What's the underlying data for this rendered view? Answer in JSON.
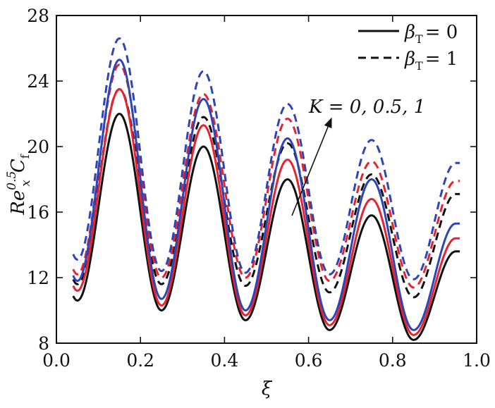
{
  "chart_data": {
    "type": "line",
    "title": "",
    "xlabel": "ξ",
    "ylabel": "Re_x^0.5 C_f",
    "ylabel_parts": {
      "main": "Re",
      "sub": "x",
      "sup": "0.5",
      "tail": "C",
      "tail_sub": "f"
    },
    "xlim": [
      0.0,
      1.0
    ],
    "ylim": [
      8,
      28
    ],
    "x_ticks": [
      "0.0",
      "0.2",
      "0.4",
      "0.6",
      "0.8",
      "1.0"
    ],
    "y_ticks": [
      "8",
      "12",
      "16",
      "20",
      "24",
      "28"
    ],
    "x_range": [
      0.04,
      0.96
    ],
    "peak_x": [
      0.15,
      0.35,
      0.55,
      0.75,
      0.95
    ],
    "trough_x": [
      0.05,
      0.25,
      0.45,
      0.65,
      0.85
    ],
    "legend": {
      "position": "top-right",
      "entries": [
        {
          "symbol": "β",
          "sub": "T",
          "eq": "= 0",
          "style": "solid"
        },
        {
          "symbol": "β",
          "sub": "T",
          "eq": "= 1",
          "style": "dashed"
        }
      ]
    },
    "annotation": {
      "text": "K = 0, 0.5, 1",
      "description": "arrow points in direction of increasing K"
    },
    "series": [
      {
        "name": "βT=0, K=0",
        "color": "#111111",
        "dash": "solid",
        "peaks": [
          22.0,
          20.0,
          18.0,
          15.8,
          13.6
        ],
        "troughs": [
          10.6,
          10.0,
          9.4,
          8.8,
          8.2
        ]
      },
      {
        "name": "βT=0, K=0.5",
        "color": "#e8222e",
        "dash": "solid",
        "peaks": [
          23.5,
          21.3,
          19.2,
          16.8,
          14.4
        ],
        "troughs": [
          11.2,
          10.3,
          9.7,
          9.1,
          8.5
        ]
      },
      {
        "name": "βT=0, K=1",
        "color": "#2e45b8",
        "dash": "solid",
        "peaks": [
          25.3,
          22.9,
          20.5,
          18.0,
          15.3
        ],
        "troughs": [
          11.8,
          10.7,
          10.0,
          9.4,
          8.8
        ]
      },
      {
        "name": "βT=1, K=0",
        "color": "#111111",
        "dash": "dashed",
        "peaks": [
          23.5,
          21.8,
          20.2,
          18.3,
          17.1
        ],
        "troughs": [
          11.6,
          11.6,
          11.5,
          11.1,
          10.8
        ]
      },
      {
        "name": "βT=1, K=0.5",
        "color": "#e8222e",
        "dash": "dashed",
        "peaks": [
          25.0,
          23.2,
          21.7,
          19.1,
          17.9
        ],
        "troughs": [
          12.2,
          12.0,
          12.0,
          11.8,
          11.4
        ]
      },
      {
        "name": "βT=1, K=1",
        "color": "#2e45b8",
        "dash": "dashed",
        "peaks": [
          26.6,
          24.6,
          22.6,
          20.4,
          19.0
        ],
        "troughs": [
          13.1,
          12.4,
          12.3,
          12.2,
          11.9
        ]
      }
    ]
  }
}
